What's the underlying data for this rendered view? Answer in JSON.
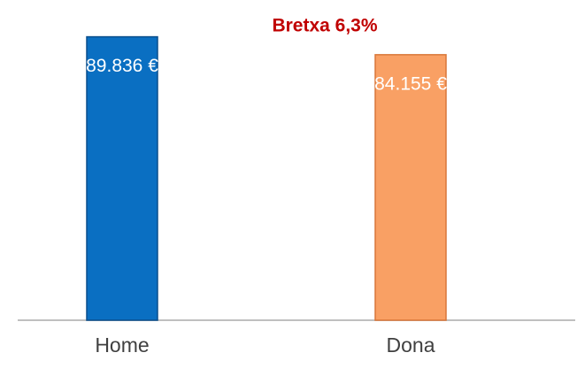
{
  "chart_data": {
    "type": "bar",
    "annotation": "Bretxa 6,3%",
    "categories": [
      "Home",
      "Dona"
    ],
    "values": [
      89836,
      84155
    ],
    "value_labels": [
      "89.836 €",
      "84.155 €"
    ],
    "colors": [
      "#0a6fc2",
      "#f9a064"
    ],
    "border_colors": [
      "#0b4f8c",
      "#d9773a"
    ],
    "ylim": [
      0,
      90000
    ]
  }
}
